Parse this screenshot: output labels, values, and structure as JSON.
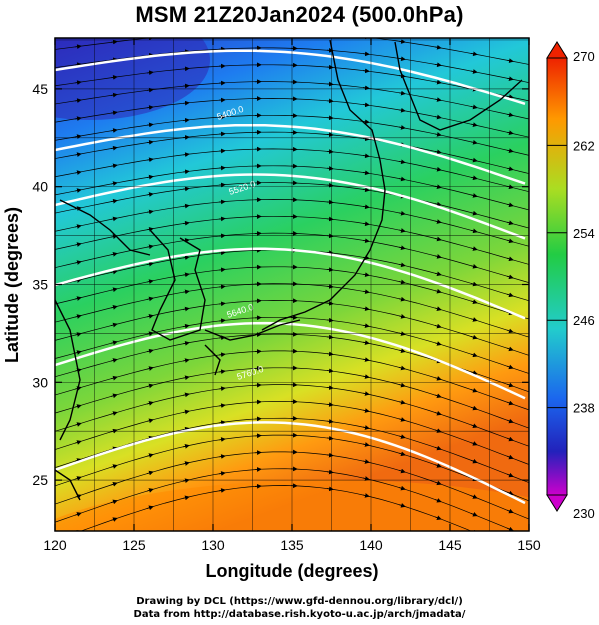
{
  "title": "MSM 21Z20Jan2024 (500.0hPa)",
  "xlabel": "Longitude (degrees)",
  "ylabel": "Latitude  (degrees)",
  "credit_line1": "Drawing by DCL (https://www.gfd-dennou.org/library/dcl/)",
  "credit_line2": "Data from http://database.rish.kyoto-u.ac.jp/arch/jmadata/",
  "map": {
    "lon_range": [
      120,
      150
    ],
    "lat_range": [
      22.4,
      47.6
    ],
    "x_ticks": [
      "120",
      "125",
      "130",
      "135",
      "140",
      "145",
      "150"
    ],
    "y_ticks": [
      "25",
      "30",
      "35",
      "40",
      "45"
    ],
    "field": "temperature (K), shaded",
    "overlay": "streamlines with arrows, white contour lines",
    "contour_labels": [
      "5400.0",
      "5520.0",
      "5640.0",
      "5760.0"
    ]
  },
  "colorbar": {
    "min": 230,
    "max": 270,
    "ticks": [
      "270",
      "262",
      "254",
      "246",
      "238",
      "230"
    ],
    "colors": [
      "#cc00cc",
      "#2222bb",
      "#1b66ee",
      "#22cccc",
      "#22cc44",
      "#aadd22",
      "#ff9900",
      "#ee2200"
    ]
  }
}
